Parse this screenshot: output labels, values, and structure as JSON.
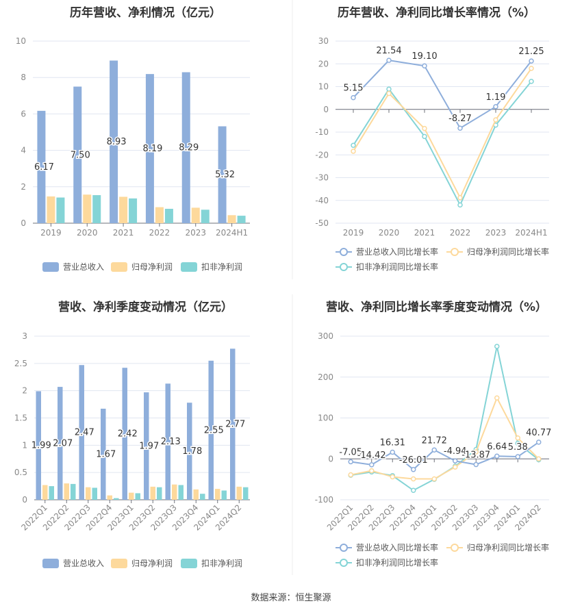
{
  "source": "数据来源：恒生聚源",
  "colors": {
    "revenue": "#8eaedb",
    "parent_net": "#fdd99c",
    "deducted_net": "#84d4d6"
  },
  "chart_data": [
    {
      "type": "bar",
      "title": "历年营收、净利情况（亿元）",
      "categories": [
        "2019",
        "2020",
        "2021",
        "2022",
        "2023",
        "2024H1"
      ],
      "ylim": [
        0,
        10
      ],
      "yticks": [
        0,
        2,
        4,
        6,
        8,
        10
      ],
      "grid": true,
      "legend": "bottom",
      "series": [
        {
          "name": "营业总收入",
          "values": [
            6.17,
            7.5,
            8.93,
            8.19,
            8.29,
            5.32
          ],
          "labels": [
            "6.17",
            "7.50",
            "8.93",
            "8.19",
            "8.29",
            "5.32"
          ]
        },
        {
          "name": "归母净利润",
          "values": [
            1.47,
            1.57,
            1.45,
            0.88,
            0.85,
            0.44
          ]
        },
        {
          "name": "扣非净利润",
          "values": [
            1.41,
            1.54,
            1.36,
            0.79,
            0.74,
            0.41
          ]
        }
      ]
    },
    {
      "type": "line",
      "title": "历年营收、净利同比增长率情况（%）",
      "categories": [
        "2019",
        "2020",
        "2021",
        "2022",
        "2023",
        "2024H1"
      ],
      "ylim": [
        -50,
        30
      ],
      "yticks": [
        -50,
        -40,
        -30,
        -20,
        -10,
        0,
        10,
        20,
        30
      ],
      "grid": true,
      "legend": "bottom",
      "series": [
        {
          "name": "营业总收入同比增长率",
          "values": [
            5.15,
            21.54,
            19.1,
            -8.27,
            1.19,
            21.25
          ],
          "labels": [
            "5.15",
            "21.54",
            "19.10",
            "-8.27",
            "1.19",
            "21.25"
          ]
        },
        {
          "name": "归母净利润同比增长率",
          "values": [
            -18.4,
            7.0,
            -8.4,
            -38.8,
            -4.6,
            18.0
          ]
        },
        {
          "name": "扣非净利润同比增长率",
          "values": [
            -15.8,
            8.9,
            -11.9,
            -42.0,
            -6.9,
            12.3
          ]
        }
      ]
    },
    {
      "type": "bar",
      "title": "营收、净利季度变动情况（亿元）",
      "categories": [
        "2022Q1",
        "2022Q2",
        "2022Q3",
        "2022Q4",
        "2023Q1",
        "2023Q2",
        "2023Q3",
        "2023Q4",
        "2024Q1",
        "2024Q2"
      ],
      "ylim": [
        0,
        3
      ],
      "yticks": [
        0,
        0.5,
        1,
        1.5,
        2,
        2.5,
        3
      ],
      "grid": true,
      "legend": "bottom",
      "series": [
        {
          "name": "营业总收入",
          "values": [
            1.99,
            2.07,
            2.47,
            1.67,
            2.42,
            1.97,
            2.13,
            1.78,
            2.55,
            2.77
          ],
          "labels": [
            "1.99",
            "2.07",
            "2.47",
            "1.67",
            "2.42",
            "1.97",
            "2.13",
            "1.78",
            "2.55",
            "2.77"
          ]
        },
        {
          "name": "归母净利润",
          "values": [
            0.27,
            0.3,
            0.23,
            0.08,
            0.13,
            0.24,
            0.28,
            0.19,
            0.2,
            0.24
          ]
        },
        {
          "name": "扣非净利润",
          "values": [
            0.25,
            0.29,
            0.22,
            0.03,
            0.12,
            0.23,
            0.27,
            0.11,
            0.17,
            0.23
          ]
        }
      ]
    },
    {
      "type": "line",
      "title": "营收、净利同比增长率季度变动情况（%）",
      "categories": [
        "2022Q1",
        "2022Q2",
        "2022Q3",
        "2022Q4",
        "2023Q1",
        "2023Q2",
        "2023Q3",
        "2023Q4",
        "2024Q1",
        "2024Q2"
      ],
      "ylim": [
        -100,
        300
      ],
      "yticks": [
        -100,
        0,
        100,
        200,
        300
      ],
      "grid": true,
      "legend": "bottom",
      "series": [
        {
          "name": "营业总收入同比增长率",
          "values": [
            -7.05,
            -14.42,
            16.31,
            -26.01,
            21.72,
            -4.94,
            -13.87,
            6.64,
            5.38,
            40.77
          ],
          "labels": [
            "-7.05",
            "-14.42",
            "16.31",
            "-26.01",
            "21.72",
            "-4.94",
            "-13.87",
            "6.64",
            "5.38",
            "40.77"
          ]
        },
        {
          "name": "归母净利润同比增长率",
          "values": [
            -39,
            -29,
            -44,
            -49,
            -49,
            -20,
            17,
            149,
            51,
            0
          ]
        },
        {
          "name": "扣非净利润同比增长率",
          "values": [
            -40,
            -32,
            -41,
            -77,
            -50,
            -18,
            23,
            275,
            38,
            -2
          ]
        }
      ]
    }
  ]
}
